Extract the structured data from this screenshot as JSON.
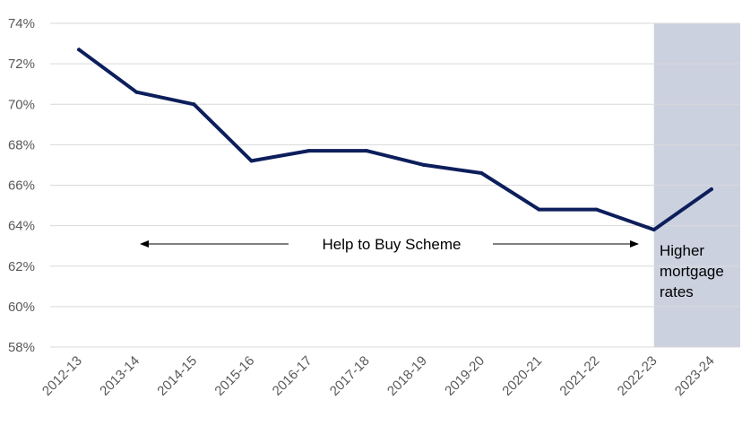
{
  "chart_data": {
    "type": "line",
    "title": "",
    "xlabel": "",
    "ylabel": "",
    "categories": [
      "2012-13",
      "2013-14",
      "2014-15",
      "2015-16",
      "2016-17",
      "2017-18",
      "2018-19",
      "2019-20",
      "2020-21",
      "2021-22",
      "2022-23",
      "2023-24"
    ],
    "series": [
      {
        "values": [
          72.7,
          70.6,
          70.0,
          67.2,
          67.7,
          67.7,
          67.0,
          66.6,
          64.8,
          64.8,
          63.8,
          65.8
        ]
      }
    ],
    "ylim": [
      58,
      74
    ],
    "yticks": [
      58,
      60,
      62,
      64,
      66,
      68,
      70,
      72,
      74
    ],
    "ytick_labels": [
      "58%",
      "60%",
      "62%",
      "64%",
      "66%",
      "68%",
      "70%",
      "72%",
      "74%"
    ],
    "grid": true,
    "line_color": "#0c1e5b",
    "grid_color": "#d9d9d9",
    "shaded_region": {
      "from": "2022-23",
      "to": "2023-24",
      "color": "#ccd1e0"
    },
    "annotations": {
      "help_to_buy": {
        "text": "Help to Buy Scheme",
        "y": 63
      },
      "higher_rates": {
        "lines": [
          "Higher",
          "mortgage",
          "rates"
        ]
      }
    }
  }
}
